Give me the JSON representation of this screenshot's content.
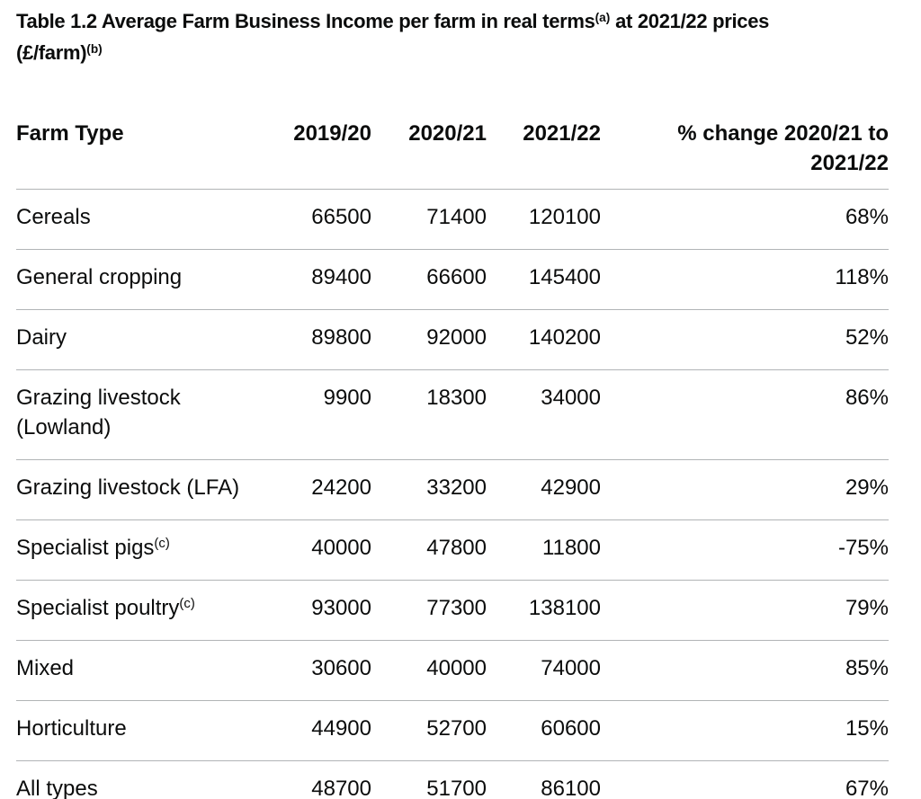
{
  "title": {
    "part1": "Table 1.2 Average Farm Business Income per farm in real terms",
    "sup_a": "(a)",
    "part2": " at 2021/22 prices ",
    "part3": "(£/farm)",
    "sup_b": "(b)"
  },
  "table": {
    "headers": {
      "farm_type": "Farm Type",
      "year1": "2019/20",
      "year2": "2020/21",
      "year3": "2021/22",
      "change_line1": "% change 2020/21 to",
      "change_line2": "2021/22"
    },
    "rows": [
      {
        "type": "Cereals",
        "sup": "",
        "v1": "66500",
        "v2": "71400",
        "v3": "120100",
        "change": "68%"
      },
      {
        "type": "General cropping",
        "sup": "",
        "v1": "89400",
        "v2": "66600",
        "v3": "145400",
        "change": "118%"
      },
      {
        "type": "Dairy",
        "sup": "",
        "v1": "89800",
        "v2": "92000",
        "v3": "140200",
        "change": "52%"
      },
      {
        "type": "Grazing livestock (Lowland)",
        "sup": "",
        "v1": "9900",
        "v2": "18300",
        "v3": "34000",
        "change": "86%"
      },
      {
        "type": "Grazing livestock (LFA)",
        "sup": "",
        "v1": "24200",
        "v2": "33200",
        "v3": "42900",
        "change": "29%"
      },
      {
        "type": "Specialist pigs",
        "sup": "(c)",
        "v1": "40000",
        "v2": "47800",
        "v3": "11800",
        "change": "-75%"
      },
      {
        "type": "Specialist poultry",
        "sup": "(c)",
        "v1": "93000",
        "v2": "77300",
        "v3": "138100",
        "change": "79%"
      },
      {
        "type": "Mixed",
        "sup": "",
        "v1": "30600",
        "v2": "40000",
        "v3": "74000",
        "change": "85%"
      },
      {
        "type": "Horticulture",
        "sup": "",
        "v1": "44900",
        "v2": "52700",
        "v3": "60600",
        "change": "15%"
      },
      {
        "type": "All types",
        "sup": "",
        "v1": "48700",
        "v2": "51700",
        "v3": "86100",
        "change": "67%"
      }
    ]
  },
  "colors": {
    "text": "#0b0c0c",
    "border": "#b1b4b6",
    "background": "#ffffff"
  }
}
